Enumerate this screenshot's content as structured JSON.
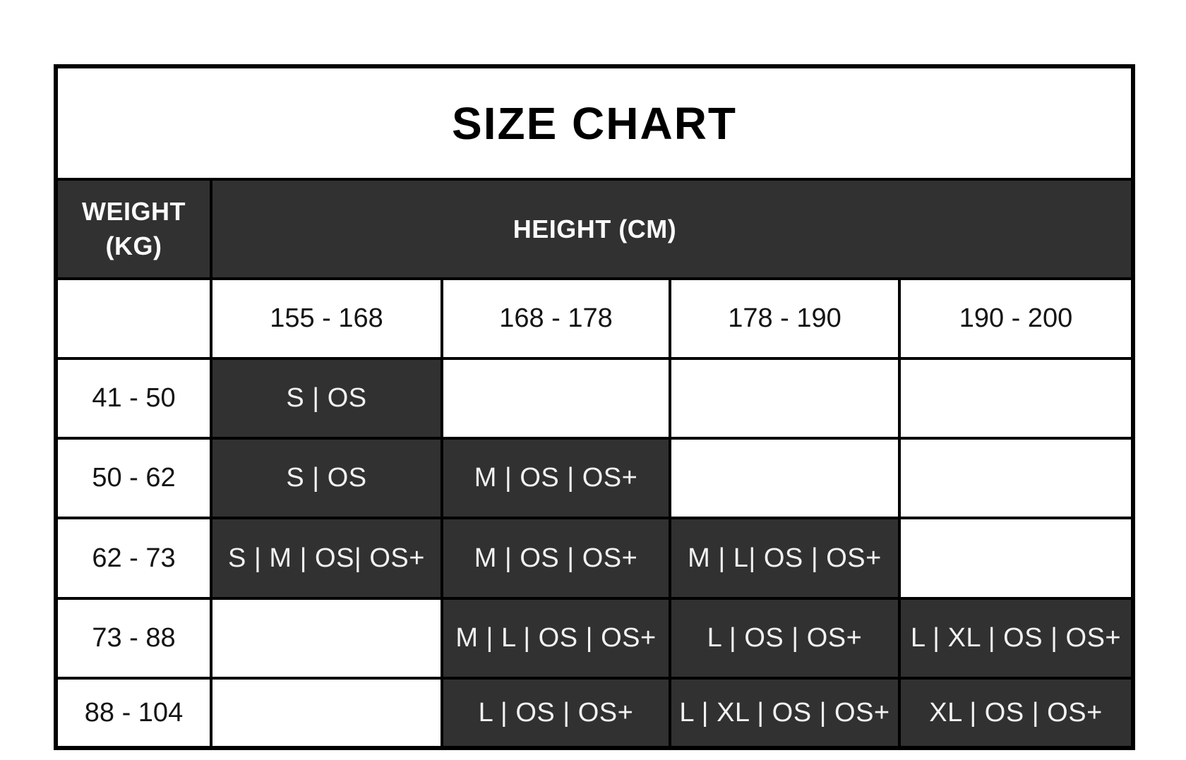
{
  "colors": {
    "background": "#FFFFFF",
    "cell_dark": "#313131",
    "border": "#000000",
    "text_on_dark": "#FAFAFA",
    "text_on_light": "#141414"
  },
  "chart_data": {
    "type": "table",
    "title": "SIZE CHART",
    "row_header": "WEIGHT (KG)",
    "col_header": "HEIGHT (CM)",
    "columns": [
      "155 - 168",
      "168 - 178",
      "178 - 190",
      "190 - 200"
    ],
    "rows": [
      {
        "weight": "41 - 50",
        "cells": [
          "S | OS",
          "",
          "",
          ""
        ]
      },
      {
        "weight": "50 - 62",
        "cells": [
          "S | OS",
          "M | OS | OS+",
          "",
          ""
        ]
      },
      {
        "weight": "62 - 73",
        "cells": [
          "S | M | OS| OS+",
          "M | OS | OS+",
          "M | L| OS | OS+",
          ""
        ]
      },
      {
        "weight": "73 - 88",
        "cells": [
          "",
          "M | L | OS | OS+",
          "L | OS | OS+",
          "L | XL | OS | OS+"
        ]
      },
      {
        "weight": "88 - 104",
        "cells": [
          "",
          "L | OS | OS+",
          "L | XL | OS | OS+",
          "XL | OS | OS+"
        ]
      }
    ]
  }
}
